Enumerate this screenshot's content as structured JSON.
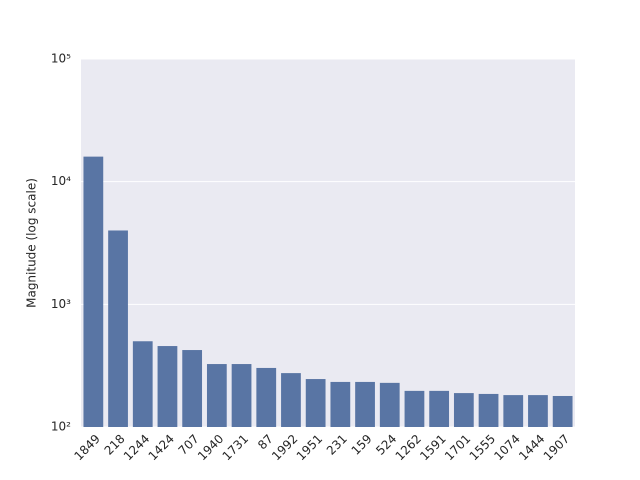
{
  "chart_data": {
    "type": "bar",
    "y_label": "Magnitude (log scale)",
    "categories": [
      "1849",
      "218",
      "1244",
      "1424",
      "707",
      "1940",
      "1731",
      "87",
      "1992",
      "1951",
      "231",
      "159",
      "524",
      "1262",
      "1591",
      "1701",
      "1555",
      "1074",
      "1444",
      "1907"
    ],
    "values": [
      16000,
      4000,
      500,
      457,
      424,
      326,
      326,
      303,
      275,
      246,
      233,
      233,
      229,
      197,
      197,
      189,
      186,
      182,
      182,
      179
    ],
    "color": "#5975a4",
    "log_scale": true,
    "grid": true,
    "ylim": [
      100,
      100000
    ],
    "yticks": [
      {
        "value": 100,
        "label": "10²"
      },
      {
        "value": 1000,
        "label": "10³"
      },
      {
        "value": 10000,
        "label": "10⁴"
      },
      {
        "value": 100000,
        "label": "10⁵"
      }
    ]
  }
}
